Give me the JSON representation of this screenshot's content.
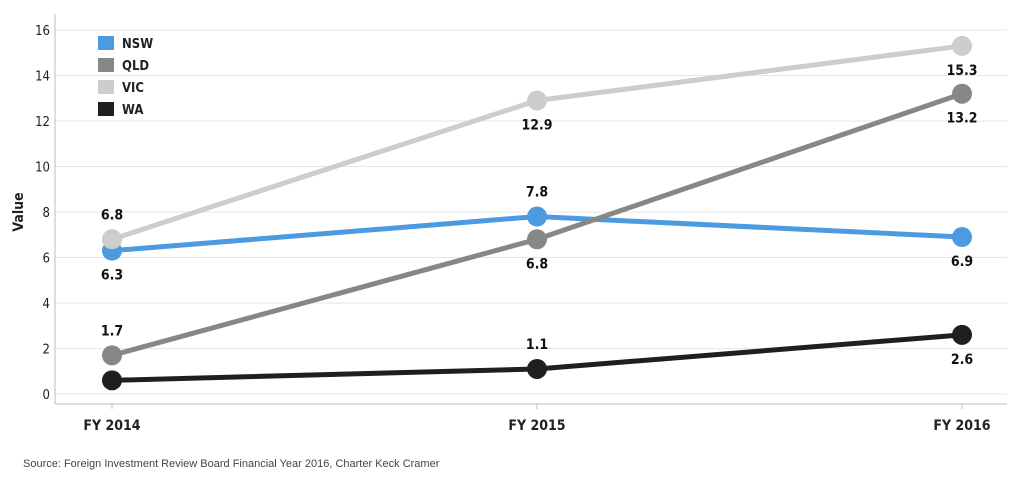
{
  "chart_data": {
    "type": "line",
    "categories": [
      "FY 2014",
      "FY 2015",
      "FY 2016"
    ],
    "ylabel": "Value",
    "ylim": [
      0,
      16
    ],
    "yticks": [
      0,
      2,
      4,
      6,
      8,
      10,
      12,
      14,
      16
    ],
    "grid": true,
    "legend_position": "top-left",
    "series": [
      {
        "name": "NSW",
        "color": "#4c9be0",
        "values": [
          6.3,
          7.8,
          6.9
        ],
        "labels": [
          "6.3",
          "7.8",
          "6.9"
        ],
        "label_pos": [
          "below",
          "above",
          "below"
        ]
      },
      {
        "name": "QLD",
        "color": "#878787",
        "values": [
          1.7,
          6.8,
          13.2
        ],
        "labels": [
          "1.7",
          "6.8",
          "13.2"
        ],
        "label_pos": [
          "above",
          "below",
          "below"
        ]
      },
      {
        "name": "VIC",
        "color": "#cdcdcd",
        "values": [
          6.8,
          12.9,
          15.3
        ],
        "labels": [
          "6.8",
          "12.9",
          "15.3"
        ],
        "label_pos": [
          "above",
          "below",
          "below"
        ]
      },
      {
        "name": "WA",
        "color": "#1f1f1f",
        "values": [
          0.6,
          1.1,
          2.6
        ],
        "labels": [
          "",
          "1.1",
          "2.6"
        ],
        "label_pos": [
          "none",
          "above",
          "below"
        ]
      }
    ]
  },
  "source_text": "Source: Foreign Investment Review Board Financial Year 2016, Charter Keck Cramer"
}
